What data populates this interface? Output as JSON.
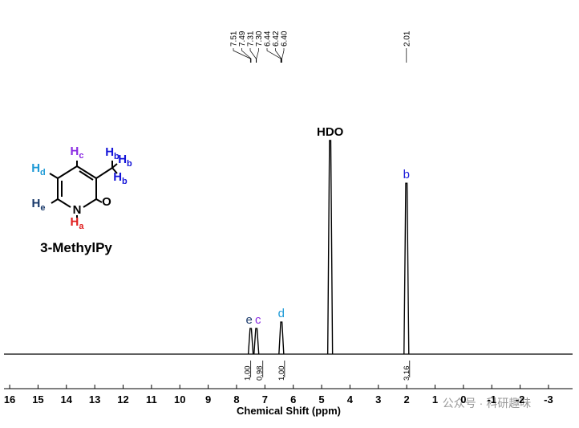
{
  "chart_data": {
    "type": "spectrum",
    "x_label": "Chemical Shift (ppm)",
    "xlim": [
      16.2,
      -3.85
    ],
    "xticks": [
      16,
      15,
      14,
      13,
      12,
      11,
      10,
      9,
      8,
      7,
      6,
      5,
      4,
      3,
      2,
      1,
      0,
      -1,
      -2,
      -3
    ],
    "ylim": [
      0,
      100
    ],
    "peaks": [
      {
        "label": "e",
        "x": 7.5,
        "value": 12,
        "color": "#1a3a6b"
      },
      {
        "label": "c",
        "x": 7.3,
        "value": 12,
        "color": "#8a2be2"
      },
      {
        "label": "d",
        "x": 6.42,
        "value": 15,
        "color": "#1e9ad6"
      },
      {
        "label": "HDO",
        "x": 4.7,
        "value": 100,
        "color": "#000000"
      },
      {
        "label": "b",
        "x": 2.01,
        "value": 80,
        "color": "#1414d8"
      }
    ],
    "shift_labels": [
      7.51,
      7.49,
      7.31,
      {
        "value": 7.3,
        "label": "7.30"
      },
      6.44,
      6.42,
      {
        "value": 6.4,
        "label": "6.40"
      },
      2.01
    ],
    "integrals": [
      {
        "x": 7.5,
        "value": 1,
        "label": "1.00"
      },
      {
        "x": 7.3,
        "value": 0.98,
        "label": "0.98"
      },
      {
        "x": 6.42,
        "value": 1,
        "label": "1.00"
      },
      {
        "x": 2.01,
        "value": 3.16,
        "label": "3.16"
      }
    ]
  },
  "structure": {
    "name": "3-MethylPy",
    "atoms": [
      {
        "symbol": "H",
        "sub": "c",
        "color": "#8a2be2"
      },
      {
        "symbol": "H",
        "sub": "d",
        "color": "#1e9ad6"
      },
      {
        "symbol": "H",
        "sub": "e",
        "color": "#1a3a6b"
      },
      {
        "symbol": "N",
        "color": "#000000"
      },
      {
        "symbol": "H",
        "sub": "a",
        "color": "#e01e1e"
      },
      {
        "symbol": "O",
        "color": "#000000"
      },
      {
        "symbol": "H",
        "sub": "b",
        "color": "#1414d8"
      },
      {
        "symbol": "H",
        "sub": "b",
        "color": "#1414d8"
      },
      {
        "symbol": "H",
        "sub": "b",
        "color": "#1414d8"
      }
    ]
  },
  "watermark": "公众号 · 科研趣味"
}
